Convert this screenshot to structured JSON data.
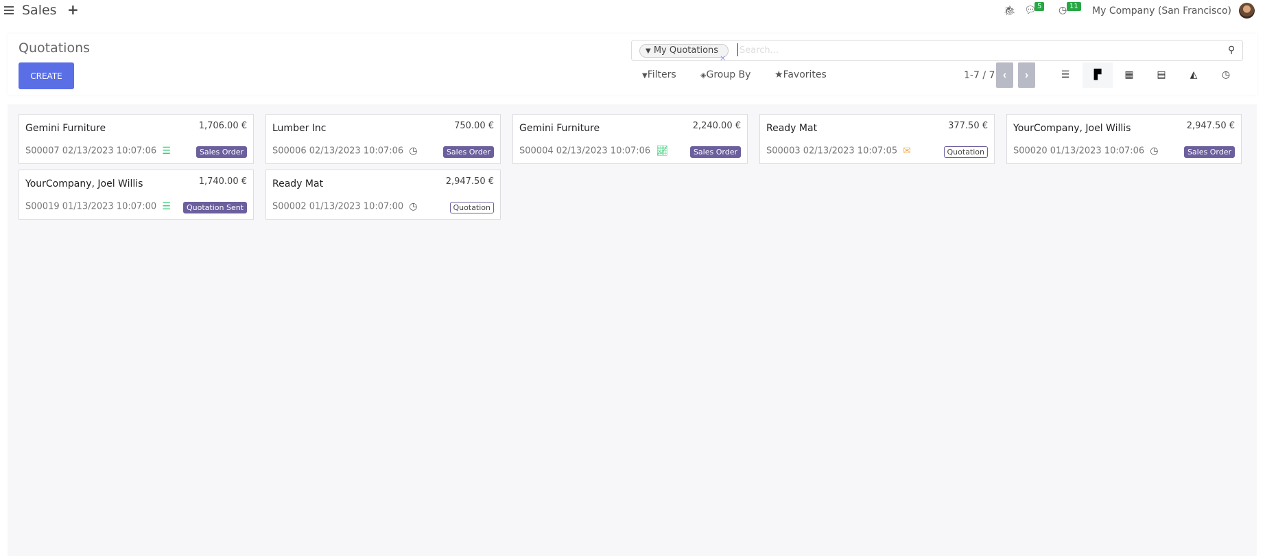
{
  "topbar": {
    "app_title": "Sales",
    "messages_count": "5",
    "activities_count": "11",
    "company": "My Company (San Francisco)"
  },
  "control_panel": {
    "title": "Quotations",
    "create_label": "CREATE",
    "facet": "My Quotations",
    "facet_remove": "×",
    "search_placeholder": "Search...",
    "filters_label": "Filters",
    "groupby_label": "Group By",
    "favorites_label": "Favorites",
    "pager": "1-7 / 7",
    "active_view": "kanban",
    "views": [
      "list",
      "kanban",
      "calendar",
      "pivot",
      "graph",
      "activity"
    ]
  },
  "colors": {
    "primary": "#5a6fe6",
    "tag": "#6c5f9d",
    "activity_green": "#2ecc71",
    "activity_warning": "#f0ad4e"
  },
  "cards": [
    {
      "customer": "Gemini Furniture",
      "amount": "1,706.00 €",
      "ref": "S00007 02/13/2023 10:07:06",
      "icon": "server-icon",
      "status": "Sales Order",
      "style": "filled"
    },
    {
      "customer": "Lumber Inc",
      "amount": "750.00 €",
      "ref": "S00006 02/13/2023 10:07:06",
      "icon": "clock-icon",
      "status": "Sales Order",
      "style": "filled"
    },
    {
      "customer": "Gemini Furniture",
      "amount": "2,240.00 €",
      "ref": "S00004 02/13/2023 10:07:06",
      "icon": "line-chart-icon",
      "status": "Sales Order",
      "style": "filled"
    },
    {
      "customer": "Ready Mat",
      "amount": "377.50 €",
      "ref": "S00003 02/13/2023 10:07:05",
      "icon": "envelope-icon",
      "status": "Quotation",
      "style": "outline"
    },
    {
      "customer": "YourCompany, Joel Willis",
      "amount": "2,947.50 €",
      "ref": "S00020 01/13/2023 10:07:06",
      "icon": "clock-icon",
      "status": "Sales Order",
      "style": "filled"
    },
    {
      "customer": "YourCompany, Joel Willis",
      "amount": "1,740.00 €",
      "ref": "S00019 01/13/2023 10:07:00",
      "icon": "server-icon",
      "status": "Quotation Sent",
      "style": "filled"
    },
    {
      "customer": "Ready Mat",
      "amount": "2,947.50 €",
      "ref": "S00002 01/13/2023 10:07:00",
      "icon": "clock-icon",
      "status": "Quotation",
      "style": "outline"
    }
  ]
}
